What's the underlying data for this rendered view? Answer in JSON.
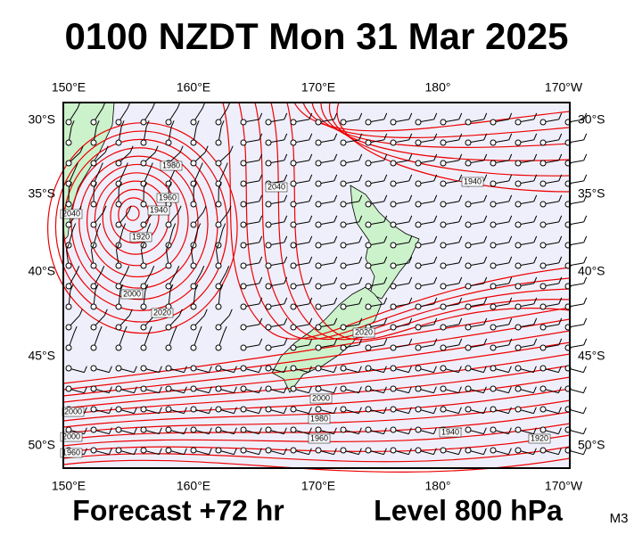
{
  "header": {
    "title": "0100 NZDT Mon 31 Mar 2025"
  },
  "axes": {
    "lon_labels": [
      "150°E",
      "160°E",
      "170°E",
      "180°",
      "170°W"
    ],
    "lat_labels": [
      "30°S",
      "35°S",
      "40°S",
      "45°S",
      "50°S"
    ]
  },
  "contour_labels": [
    "1980",
    "1960",
    "1940",
    "1920",
    "2000",
    "2020",
    "2040",
    "1940",
    "2040",
    "2020",
    "2000",
    "1980",
    "2000",
    "1960",
    "1940",
    "1920",
    "2000",
    "1960"
  ],
  "footer": {
    "forecast": "Forecast +72 hr",
    "level": "Level 800 hPa",
    "model": "M3"
  }
}
